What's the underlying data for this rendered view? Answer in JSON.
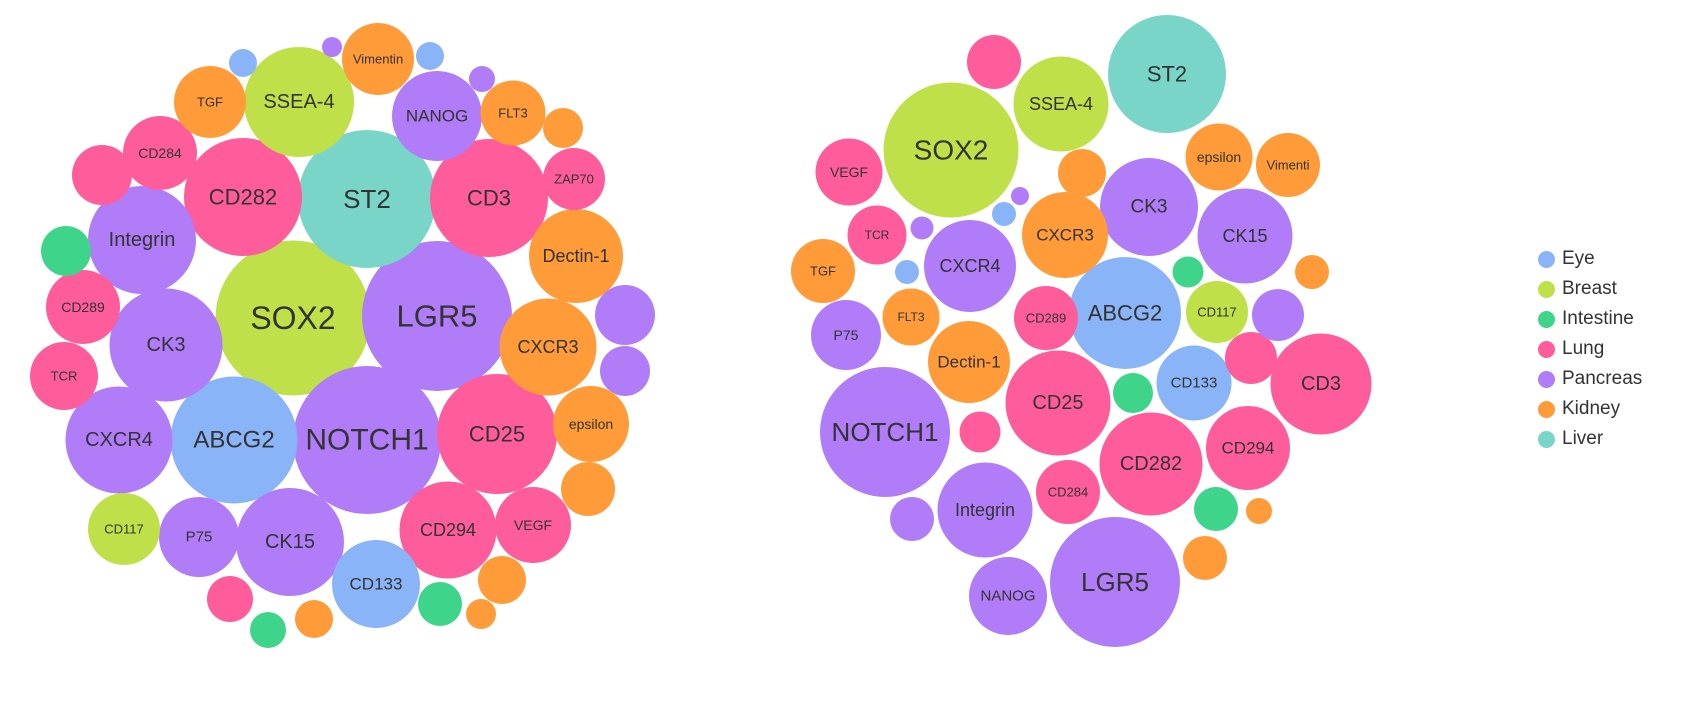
{
  "colors": {
    "Eye": "#8ab4f8",
    "Breast": "#bfe048",
    "Intestine": "#3ed58a",
    "Lung": "#ff5c9b",
    "Pancreas": "#b07cf7",
    "Kidney": "#ff9b39",
    "Liver": "#79d5c8"
  },
  "legend": {
    "items": [
      {
        "label": "Eye",
        "color": "#8ab4f8"
      },
      {
        "label": "Breast",
        "color": "#bfe048"
      },
      {
        "label": "Intestine",
        "color": "#3ed58a"
      },
      {
        "label": "Lung",
        "color": "#ff5c9b"
      },
      {
        "label": "Pancreas",
        "color": "#b07cf7"
      },
      {
        "label": "Kidney",
        "color": "#ff9b39"
      },
      {
        "label": "Liver",
        "color": "#79d5c8"
      }
    ]
  },
  "chart_data": [
    {
      "type": "bubble",
      "bubbles": [
        {
          "label": "SOX2",
          "group": "Breast",
          "value": 155
        },
        {
          "label": "LGR5",
          "group": "Pancreas",
          "value": 150
        },
        {
          "label": "NOTCH1",
          "group": "Pancreas",
          "value": 148
        },
        {
          "label": "ABCG2",
          "group": "Eye",
          "value": 127
        },
        {
          "label": "ST2",
          "group": "Liver",
          "value": 138
        },
        {
          "label": "CD282",
          "group": "Lung",
          "value": 118
        },
        {
          "label": "CD3",
          "group": "Lung",
          "value": 118
        },
        {
          "label": "CD25",
          "group": "Lung",
          "value": 120
        },
        {
          "label": "SSEA-4",
          "group": "Breast",
          "value": 110
        },
        {
          "label": "Integrin",
          "group": "Pancreas",
          "value": 108
        },
        {
          "label": "CK3",
          "group": "Pancreas",
          "value": 113
        },
        {
          "label": "CXCR4",
          "group": "Pancreas",
          "value": 107
        },
        {
          "label": "CK15",
          "group": "Pancreas",
          "value": 108
        },
        {
          "label": "CD294",
          "group": "Lung",
          "value": 97
        },
        {
          "label": "CXCR3",
          "group": "Kidney",
          "value": 97
        },
        {
          "label": "Dectin-1",
          "group": "Kidney",
          "value": 94
        },
        {
          "label": "NANOG",
          "group": "Pancreas",
          "value": 90
        },
        {
          "label": "CD133",
          "group": "Eye",
          "value": 88
        },
        {
          "label": "P75",
          "group": "Pancreas",
          "value": 80
        },
        {
          "label": "VEGF",
          "group": "Lung",
          "value": 76
        },
        {
          "label": "epsilon",
          "group": "Kidney",
          "value": 76
        },
        {
          "label": "CD284",
          "group": "Lung",
          "value": 74
        },
        {
          "label": "CD289",
          "group": "Lung",
          "value": 74
        },
        {
          "label": "CD117",
          "group": "Breast",
          "value": 72
        },
        {
          "label": "TGF",
          "group": "Kidney",
          "value": 72
        },
        {
          "label": "Vimentin",
          "group": "Kidney",
          "value": 72
        },
        {
          "label": "TCR",
          "group": "Lung",
          "value": 68
        },
        {
          "label": "FLT3",
          "group": "Kidney",
          "value": 65
        },
        {
          "label": "ZAP70",
          "group": "Lung",
          "value": 62
        },
        {
          "label": "",
          "group": "Pancreas",
          "value": 60
        },
        {
          "label": "",
          "group": "Pancreas",
          "value": 50
        },
        {
          "label": "",
          "group": "Kidney",
          "value": 54
        },
        {
          "label": "",
          "group": "Kidney",
          "value": 48
        },
        {
          "label": "",
          "group": "Kidney",
          "value": 40
        },
        {
          "label": "",
          "group": "Kidney",
          "value": 38
        },
        {
          "label": "",
          "group": "Kidney",
          "value": 30
        },
        {
          "label": "",
          "group": "Intestine",
          "value": 50
        },
        {
          "label": "",
          "group": "Intestine",
          "value": 44
        },
        {
          "label": "",
          "group": "Intestine",
          "value": 36
        },
        {
          "label": "",
          "group": "Lung",
          "value": 60
        },
        {
          "label": "",
          "group": "Lung",
          "value": 46
        },
        {
          "label": "",
          "group": "Eye",
          "value": 28
        },
        {
          "label": "",
          "group": "Eye",
          "value": 28
        },
        {
          "label": "",
          "group": "Pancreas",
          "value": 26
        },
        {
          "label": "",
          "group": "Pancreas",
          "value": 20
        }
      ]
    },
    {
      "type": "bubble",
      "bubbles": [
        {
          "label": "ST2",
          "group": "Liver",
          "value": 118
        },
        {
          "label": "SOX2",
          "group": "Breast",
          "value": 135
        },
        {
          "label": "SSEA-4",
          "group": "Breast",
          "value": 95
        },
        {
          "label": "NOTCH1",
          "group": "Pancreas",
          "value": 130
        },
        {
          "label": "LGR5",
          "group": "Pancreas",
          "value": 130
        },
        {
          "label": "ABCG2",
          "group": "Eye",
          "value": 112
        },
        {
          "label": "CD3",
          "group": "Lung",
          "value": 101
        },
        {
          "label": "CD25",
          "group": "Lung",
          "value": 105
        },
        {
          "label": "CD282",
          "group": "Lung",
          "value": 103
        },
        {
          "label": "CK3",
          "group": "Pancreas",
          "value": 98
        },
        {
          "label": "CK15",
          "group": "Pancreas",
          "value": 95
        },
        {
          "label": "CXCR4",
          "group": "Pancreas",
          "value": 92
        },
        {
          "label": "Integrin",
          "group": "Pancreas",
          "value": 95
        },
        {
          "label": "CXCR3",
          "group": "Kidney",
          "value": 86
        },
        {
          "label": "CD294",
          "group": "Lung",
          "value": 84
        },
        {
          "label": "Dectin-1",
          "group": "Kidney",
          "value": 82
        },
        {
          "label": "NANOG",
          "group": "Pancreas",
          "value": 78
        },
        {
          "label": "CD133",
          "group": "Eye",
          "value": 75
        },
        {
          "label": "CD289",
          "group": "Lung",
          "value": 64
        },
        {
          "label": "CD284",
          "group": "Lung",
          "value": 64
        },
        {
          "label": "P75",
          "group": "Pancreas",
          "value": 70
        },
        {
          "label": "VEGF",
          "group": "Lung",
          "value": 67
        },
        {
          "label": "epsilon",
          "group": "Kidney",
          "value": 67
        },
        {
          "label": "Vimenti",
          "group": "Kidney",
          "value": 64
        },
        {
          "label": "TGF",
          "group": "Kidney",
          "value": 64
        },
        {
          "label": "CD117",
          "group": "Breast",
          "value": 62
        },
        {
          "label": "TCR",
          "group": "Lung",
          "value": 59
        },
        {
          "label": "FLT3",
          "group": "Kidney",
          "value": 57
        },
        {
          "label": "",
          "group": "Lung",
          "value": 54
        },
        {
          "label": "",
          "group": "Lung",
          "value": 52
        },
        {
          "label": "",
          "group": "Lung",
          "value": 41
        },
        {
          "label": "",
          "group": "Pancreas",
          "value": 52
        },
        {
          "label": "",
          "group": "Pancreas",
          "value": 44
        },
        {
          "label": "",
          "group": "Pancreas",
          "value": 23
        },
        {
          "label": "",
          "group": "Pancreas",
          "value": 18
        },
        {
          "label": "",
          "group": "Kidney",
          "value": 48
        },
        {
          "label": "",
          "group": "Kidney",
          "value": 44
        },
        {
          "label": "",
          "group": "Kidney",
          "value": 34
        },
        {
          "label": "",
          "group": "Kidney",
          "value": 26
        },
        {
          "label": "",
          "group": "Intestine",
          "value": 44
        },
        {
          "label": "",
          "group": "Intestine",
          "value": 40
        },
        {
          "label": "",
          "group": "Intestine",
          "value": 31
        },
        {
          "label": "",
          "group": "Eye",
          "value": 24
        },
        {
          "label": "",
          "group": "Eye",
          "value": 24
        }
      ]
    }
  ]
}
